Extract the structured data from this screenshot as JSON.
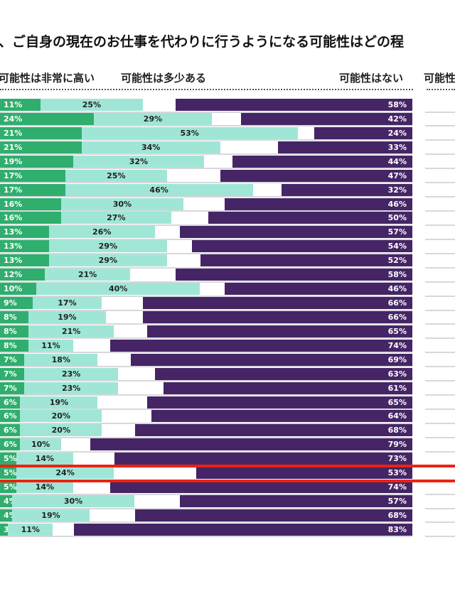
{
  "title": "、ご自身の現在のお仕事を代わりに行うようになる可能性はどの程",
  "chart_data": {
    "type": "bar",
    "stacked": true,
    "orientation": "horizontal",
    "title": "、ご自身の現在のお仕事を代わりに行うようになる可能性はどの程",
    "legend": [
      "可能性は非常に高い",
      "可能性は多少ある",
      "可能性はない",
      "可能性"
    ],
    "colors": {
      "very_high": "#2fae6e",
      "some": "#9fe6d6",
      "none": "#452565",
      "highlight": "#ee2211"
    },
    "highlight_row": 26,
    "series": [
      {
        "name": "可能性は非常に高い",
        "values": [
          11,
          24,
          21,
          21,
          19,
          17,
          17,
          16,
          16,
          13,
          13,
          13,
          12,
          10,
          9,
          8,
          8,
          8,
          7,
          7,
          7,
          6,
          6,
          6,
          6,
          5,
          5,
          5,
          4,
          4,
          3
        ]
      },
      {
        "name": "可能性は多少ある",
        "values": [
          25,
          29,
          53,
          34,
          32,
          25,
          46,
          30,
          27,
          26,
          29,
          29,
          21,
          40,
          17,
          19,
          21,
          11,
          18,
          23,
          23,
          19,
          20,
          20,
          10,
          14,
          24,
          14,
          30,
          19,
          11
        ]
      },
      {
        "name": "可能性はない",
        "values": [
          58,
          42,
          24,
          33,
          44,
          47,
          32,
          46,
          50,
          57,
          54,
          52,
          58,
          46,
          66,
          66,
          65,
          74,
          69,
          63,
          61,
          65,
          64,
          68,
          79,
          73,
          53,
          74,
          57,
          68,
          83
        ]
      }
    ]
  }
}
